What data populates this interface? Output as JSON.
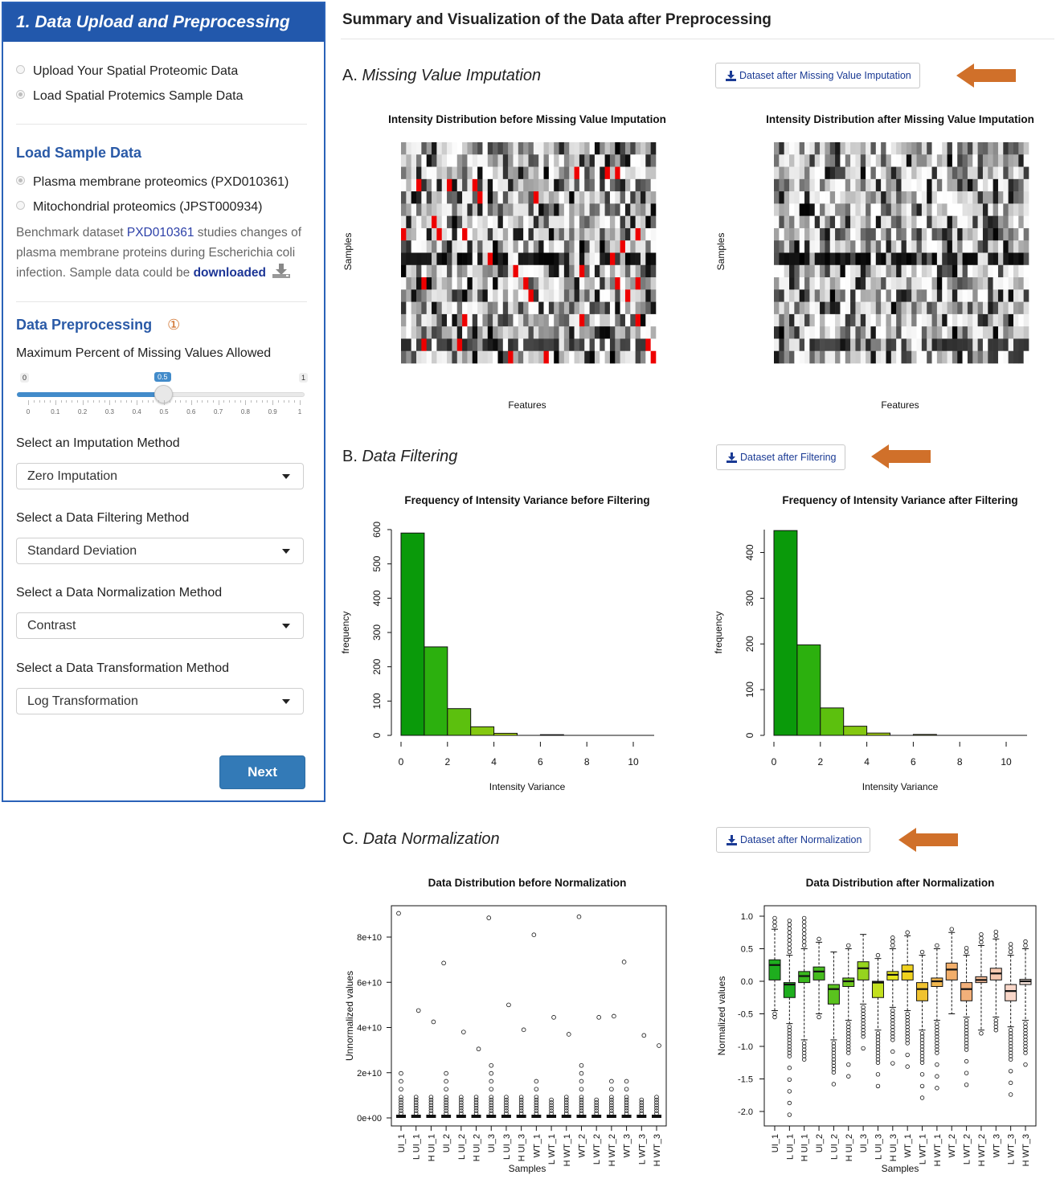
{
  "panel": {
    "header": "1. Data Upload and Preprocessing",
    "data_source_options": [
      "Upload Your Spatial Proteomic Data",
      "Load Spatial Protemics Sample Data"
    ],
    "data_source_selected": "Load Spatial Protemics Sample Data",
    "load_sample": {
      "title": "Load Sample Data",
      "options": [
        "Plasma membrane proteomics (PXD010361)",
        "Mitochondrial proteomics (JPST000934)"
      ],
      "selected": "Plasma membrane proteomics (PXD010361)",
      "desc_prefix": "Benchmark dataset ",
      "desc_link": "PXD010361",
      "desc_middle": " studies changes of plasma membrane proteins during Escherichia coli infection. Sample data could be ",
      "desc_download": "downloaded"
    },
    "preprocessing": {
      "title": "Data Preprocessing",
      "marker": "①",
      "missing_label": "Maximum Percent of Missing Values Allowed",
      "slider": {
        "min": "0",
        "max": "1",
        "value": "0.5",
        "value_num": 0.5,
        "ticks": [
          "0",
          "0.1",
          "0.2",
          "0.3",
          "0.4",
          "0.5",
          "0.6",
          "0.7",
          "0.8",
          "0.9",
          "1"
        ]
      },
      "imputation_label": "Select an Imputation Method",
      "imputation_value": "Zero Imputation",
      "filtering_label": "Select a Data Filtering Method",
      "filtering_value": "Standard Deviation",
      "normalization_label": "Select a Data Normalization Method",
      "normalization_value": "Contrast",
      "transformation_label": "Select a Data Transformation Method",
      "transformation_value": "Log Transformation"
    },
    "next_label": "Next"
  },
  "main": {
    "title": "Summary and Visualization of the Data after Preprocessing",
    "sections": [
      {
        "letter": "A.",
        "name": "Missing Value Imputation",
        "button": "Dataset after Missing Value Imputation"
      },
      {
        "letter": "B.",
        "name": "Data Filtering",
        "button": "Dataset after Filtering"
      },
      {
        "letter": "C.",
        "name": "Data Normalization",
        "button": "Dataset after Normalization"
      }
    ]
  },
  "colors": {
    "accent": "#2258ac",
    "arrow": "#d0702a",
    "hist_dark": "#0a9a0a",
    "missing": "#ee0000"
  },
  "chart_data": [
    {
      "type": "heatmap",
      "title": "Intensity Distribution before Missing Value Imputation",
      "xlabel": "Features",
      "ylabel": "Samples",
      "rows": 18,
      "cols": 50,
      "missing_marked": true
    },
    {
      "type": "heatmap",
      "title": "Intensity Distribution after Missing Value Imputation",
      "xlabel": "Features",
      "ylabel": "Samples",
      "rows": 18,
      "cols": 50,
      "missing_marked": false
    },
    {
      "type": "bar",
      "title": "Frequency of Intensity Variance before Filtering",
      "xlabel": "Intensity Variance",
      "ylabel": "frequency",
      "bin_edges": [
        0,
        1,
        2,
        3,
        4,
        5,
        6,
        7,
        8,
        9,
        10,
        11
      ],
      "values": [
        590,
        258,
        78,
        25,
        6,
        0,
        2,
        0,
        0,
        0,
        0
      ],
      "xticks": [
        "0",
        "2",
        "4",
        "6",
        "8",
        "10"
      ],
      "yticks": [
        "0",
        "100",
        "200",
        "300",
        "400",
        "500",
        "600"
      ],
      "xlim": [
        0,
        11
      ],
      "ylim": [
        0,
        600
      ]
    },
    {
      "type": "bar",
      "title": "Frequency of Intensity Variance after Filtering",
      "xlabel": "Intensity Variance",
      "ylabel": "frequency",
      "bin_edges": [
        0,
        1,
        2,
        3,
        4,
        5,
        6,
        7,
        8,
        9,
        10,
        11
      ],
      "values": [
        448,
        198,
        60,
        20,
        5,
        0,
        2,
        0,
        0,
        0,
        0
      ],
      "xticks": [
        "0",
        "2",
        "4",
        "6",
        "8",
        "10"
      ],
      "yticks": [
        "0",
        "100",
        "200",
        "300",
        "400"
      ],
      "xlim": [
        0,
        11
      ],
      "ylim": [
        0,
        450
      ]
    },
    {
      "type": "box",
      "title": "Data Distribution before Normalization",
      "xlabel": "Samples",
      "ylabel": "Unnormalized values",
      "categories": [
        "UI_1",
        "L UI_1",
        "H UI_1",
        "UI_2",
        "L UI_2",
        "H UI_2",
        "UI_3",
        "L UI_3",
        "H UI_3",
        "WT_1",
        "L WT_1",
        "H WT_1",
        "WT_2",
        "L WT_2",
        "H WT_2",
        "WT_3",
        "L WT_3",
        "H WT_3"
      ],
      "yticks": [
        "0e+00",
        "2e+10",
        "4e+10",
        "6e+10",
        "8e+10"
      ],
      "ylim": [
        0,
        90000000000.0
      ],
      "max_outlier": [
        90500000000.0,
        47500000000.0,
        42500000000.0,
        68500000000.0,
        38000000000.0,
        30500000000.0,
        88500000000.0,
        50000000000.0,
        39000000000.0,
        81000000000.0,
        44500000000.0,
        37000000000.0,
        89000000000.0,
        44500000000.0,
        45000000000.0,
        69000000000.0,
        36500000000.0,
        32000000000.0
      ],
      "upper_outlier_max": [
        22000000000.0,
        10000000000.0,
        12000000000.0,
        20000000000.0,
        10000000000.0,
        10000000000.0,
        24000000000.0,
        12000000000.0,
        12000000000.0,
        17000000000.0,
        8000000000.0,
        10000000000.0,
        24000000000.0,
        8000000000.0,
        17000000000.0,
        17000000000.0,
        8000000000.0,
        10000000000.0
      ]
    },
    {
      "type": "box",
      "title": "Data Distribution after Normalization",
      "xlabel": "Samples",
      "ylabel": "Normalized values",
      "categories": [
        "UI_1",
        "L UI_1",
        "H UI_1",
        "UI_2",
        "L UI_2",
        "H UI_2",
        "UI_3",
        "L UI_3",
        "H UI_3",
        "WT_1",
        "L WT_1",
        "H WT_1",
        "WT_2",
        "L WT_2",
        "H WT_2",
        "WT_3",
        "L WT_3",
        "H WT_3"
      ],
      "yticks": [
        "-2.0",
        "-1.5",
        "-1.0",
        "-0.5",
        "0.0",
        "0.5",
        "1.0"
      ],
      "ylim": [
        -2.1,
        1.1
      ],
      "q1": [
        0.02,
        -0.25,
        -0.02,
        0.02,
        -0.35,
        -0.08,
        0.02,
        -0.25,
        0.02,
        0.02,
        -0.3,
        -0.08,
        0.02,
        -0.3,
        -0.02,
        0.02,
        -0.3,
        -0.05
      ],
      "median": [
        0.25,
        -0.05,
        0.08,
        0.15,
        -0.12,
        0.0,
        0.2,
        -0.02,
        0.1,
        0.15,
        -0.12,
        0.0,
        0.18,
        -0.12,
        0.02,
        0.12,
        -0.15,
        0.0
      ],
      "q3": [
        0.33,
        -0.02,
        0.15,
        0.22,
        -0.05,
        0.05,
        0.3,
        -0.0,
        0.15,
        0.25,
        -0.02,
        0.05,
        0.28,
        -0.02,
        0.07,
        0.2,
        -0.05,
        0.03
      ],
      "colors": [
        "#1eae1e",
        "#1eae1e",
        "#3ab81e",
        "#46bc1e",
        "#5ac21e",
        "#6ec81e",
        "#96d41e",
        "#c2e01e",
        "#e6e61e",
        "#f0d21e",
        "#f0c230",
        "#f2b850",
        "#f2ae6a",
        "#f2b07a",
        "#f4bc98",
        "#f6c8b0",
        "#f8d6c8",
        "#fbe8e0"
      ],
      "whisker_low": [
        -0.45,
        -0.65,
        -0.9,
        -0.5,
        -0.9,
        -0.6,
        -0.35,
        -0.75,
        -0.4,
        -0.45,
        -0.75,
        -0.6,
        -0.5,
        -0.55,
        -0.75,
        -0.55,
        -0.7,
        -0.6
      ],
      "whisker_high": [
        0.8,
        0.4,
        0.5,
        0.6,
        0.45,
        0.5,
        0.72,
        0.35,
        0.5,
        0.7,
        0.4,
        0.5,
        0.75,
        0.4,
        0.55,
        0.65,
        0.4,
        0.5
      ],
      "outlier_min": [
        -0.6,
        -2.1,
        -1.25,
        -0.55,
        -1.6,
        -1.6,
        -1.2,
        -1.75,
        -1.4,
        -1.45,
        -1.8,
        -1.8,
        -0.5,
        -1.6,
        -0.85,
        -0.8,
        -1.8,
        -1.3
      ],
      "outlier_max": [
        1.0,
        0.95,
        1.0,
        0.7,
        0.45,
        0.55,
        0.7,
        0.45,
        0.7,
        0.75,
        0.45,
        0.55,
        0.85,
        0.55,
        0.75,
        0.8,
        0.6,
        0.65
      ]
    }
  ]
}
